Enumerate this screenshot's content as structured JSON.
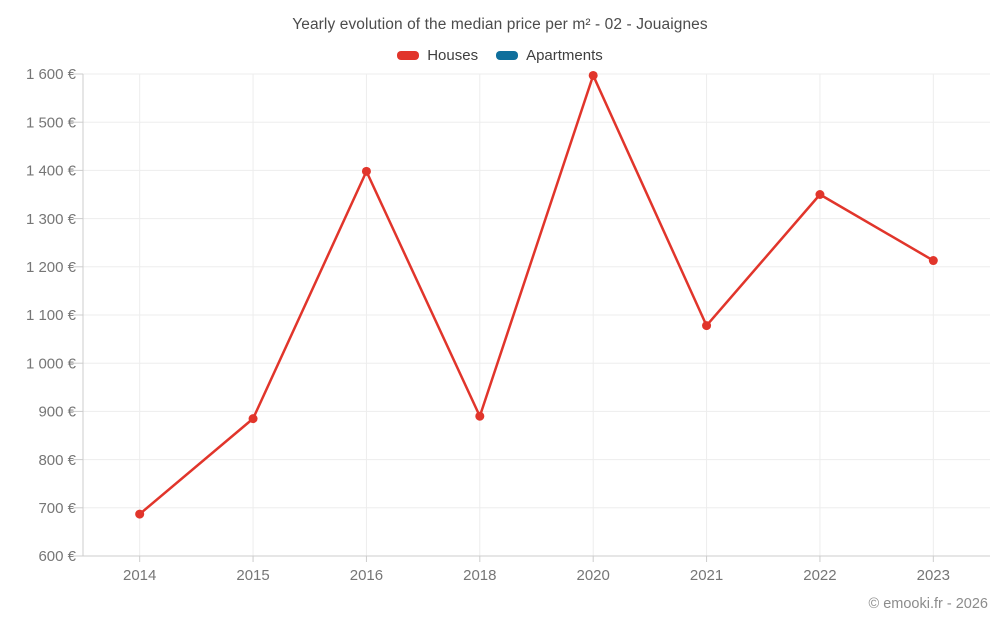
{
  "chart_data": {
    "type": "line",
    "title": "Yearly evolution of the median price per m² - 02 - Jouaignes",
    "categories": [
      "2014",
      "2015",
      "2016",
      "2018",
      "2020",
      "2021",
      "2022",
      "2023"
    ],
    "series": [
      {
        "name": "Houses",
        "color": "#e1352b",
        "values": [
          687,
          885,
          1398,
          890,
          1597,
          1078,
          1350,
          1213
        ]
      },
      {
        "name": "Apartments",
        "color": "#0f6f9c",
        "values": []
      }
    ],
    "xlabel": "",
    "ylabel": "",
    "y_unit": "€",
    "ylim": [
      600,
      1600
    ],
    "ytick_step": 100,
    "grid": true,
    "legend_position": "top",
    "marker": "circle",
    "colors": {
      "gridline": "#ededed",
      "axis": "#cccccc",
      "tick_label": "#767676"
    }
  },
  "footer": {
    "credit": "© emooki.fr - 2026"
  }
}
